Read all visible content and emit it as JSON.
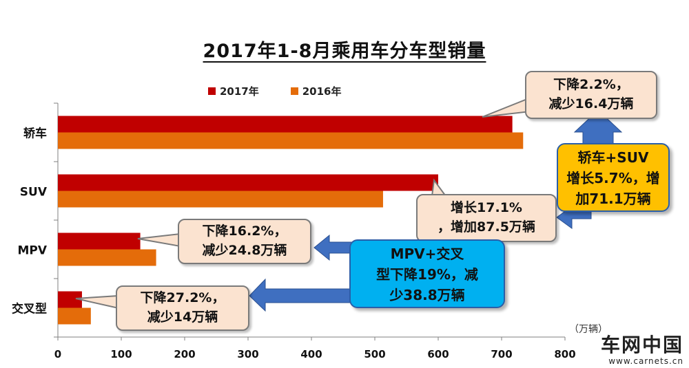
{
  "title": "2017年1-8月乘用车分车型销量",
  "unit_label": "（万辆）",
  "chart_data": {
    "type": "bar",
    "orientation": "horizontal",
    "categories": [
      "轿车",
      "SUV",
      "MPV",
      "交叉型"
    ],
    "series": [
      {
        "name": "2017年",
        "values": [
          717,
          600,
          130,
          38
        ],
        "color": "#c00000"
      },
      {
        "name": "2016年",
        "values": [
          734,
          513,
          155,
          52
        ],
        "color": "#e46c0a"
      }
    ],
    "xlim": [
      0,
      800
    ],
    "xticks": [
      0,
      100,
      200,
      300,
      400,
      500,
      600,
      700,
      800
    ],
    "grid": false,
    "legend": "top"
  },
  "callouts": {
    "sedan": "下降2.2%，减少16.4万辆",
    "suv": "增长17.1%，增加87.5万辆",
    "mpv": "下降16.2%，减少24.8万辆",
    "cross": "下降27.2%，减少14万辆"
  },
  "summaries": {
    "sedan_suv": "轿车+SUV增长5.7%，增加71.1万辆",
    "mpv_cross": "MPV+交叉型下降19%，减少38.8万辆"
  },
  "colors": {
    "callout_fill": "#fbe3d0",
    "summary_yellow": "#ffc000",
    "summary_blue": "#00b0f0",
    "arrow_blue": "#3f6fc0"
  },
  "watermark": {
    "name": "车网中国",
    "url": "www.carnets.cn"
  }
}
